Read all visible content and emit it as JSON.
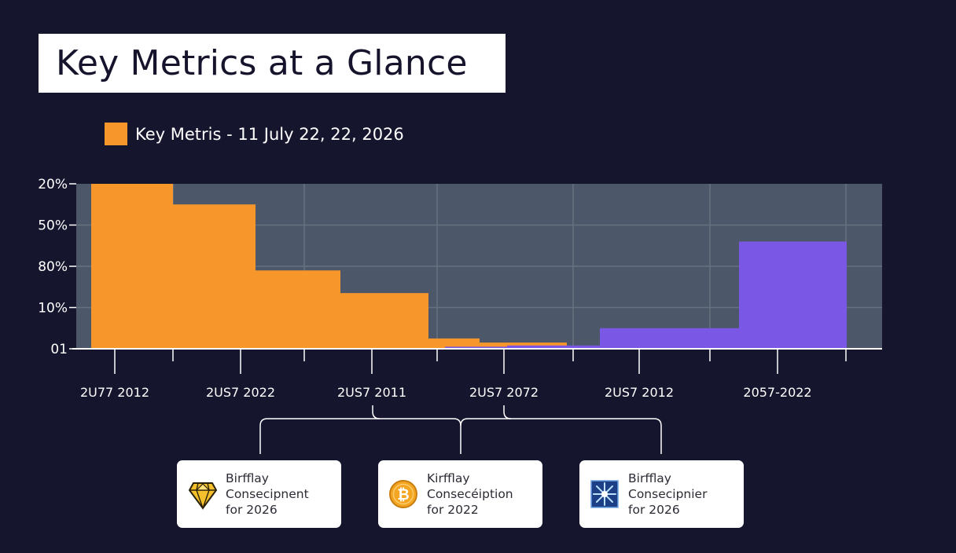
{
  "title": "Key Metrics at a Glance",
  "legend": {
    "label": "Key Metris - 11 July 22, 22, 2026",
    "color": "#f7962b"
  },
  "colors": {
    "plot_bg": "#4c5769",
    "grid": "#66717f",
    "orange": "#f7962b",
    "purple": "#7b57e6",
    "page_bg": "#16152e"
  },
  "chart_data": {
    "type": "bar",
    "y_tick_labels": [
      "20%",
      "50%",
      "80%",
      "10%",
      "01"
    ],
    "x_tick_labels": [
      "2U77 2012",
      "2US7 2022",
      "2US7 2011",
      "2US7 2072",
      "2US7 2012",
      "2057-2022"
    ],
    "ylim": [
      0,
      4
    ],
    "grid": true,
    "legend_position": "top-left",
    "series": [
      {
        "name": "Key Metris - 11 July 22, 22, 2026",
        "color": "#f7962b",
        "values": [
          4.0,
          3.5,
          1.9,
          1.35,
          0.25,
          0.15
        ]
      },
      {
        "color": "#7b57e6",
        "values": [
          0.05,
          0.08,
          0.5,
          2.6
        ]
      }
    ]
  },
  "cards": [
    {
      "icon": "diamond-icon",
      "lines": [
        "Birfflay",
        "Consecipnent",
        "for 2026"
      ]
    },
    {
      "icon": "bitcoin-icon",
      "lines": [
        "Kirfflay",
        "Consecéiption",
        "for 2022"
      ]
    },
    {
      "icon": "snowflake-icon",
      "lines": [
        "Birfflay",
        "Consecipnier",
        "for 2026"
      ]
    }
  ]
}
